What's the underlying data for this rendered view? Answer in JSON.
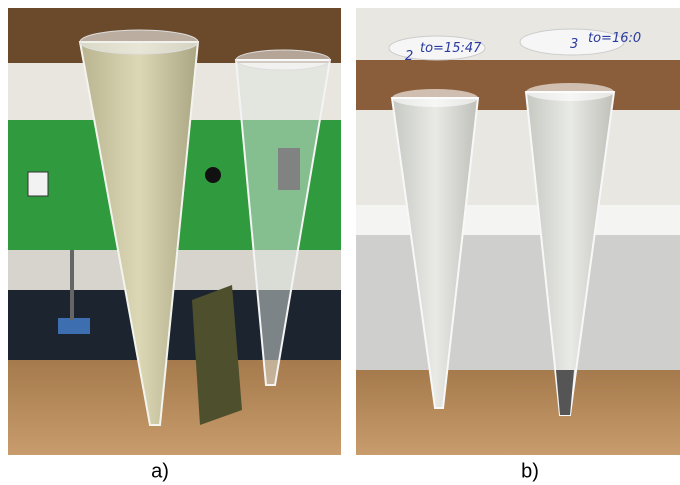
{
  "panels": [
    {
      "caption": "a)"
    },
    {
      "caption": "b)",
      "labels": [
        "2",
        "to=15:47",
        "3",
        "to=16:0"
      ]
    }
  ]
}
